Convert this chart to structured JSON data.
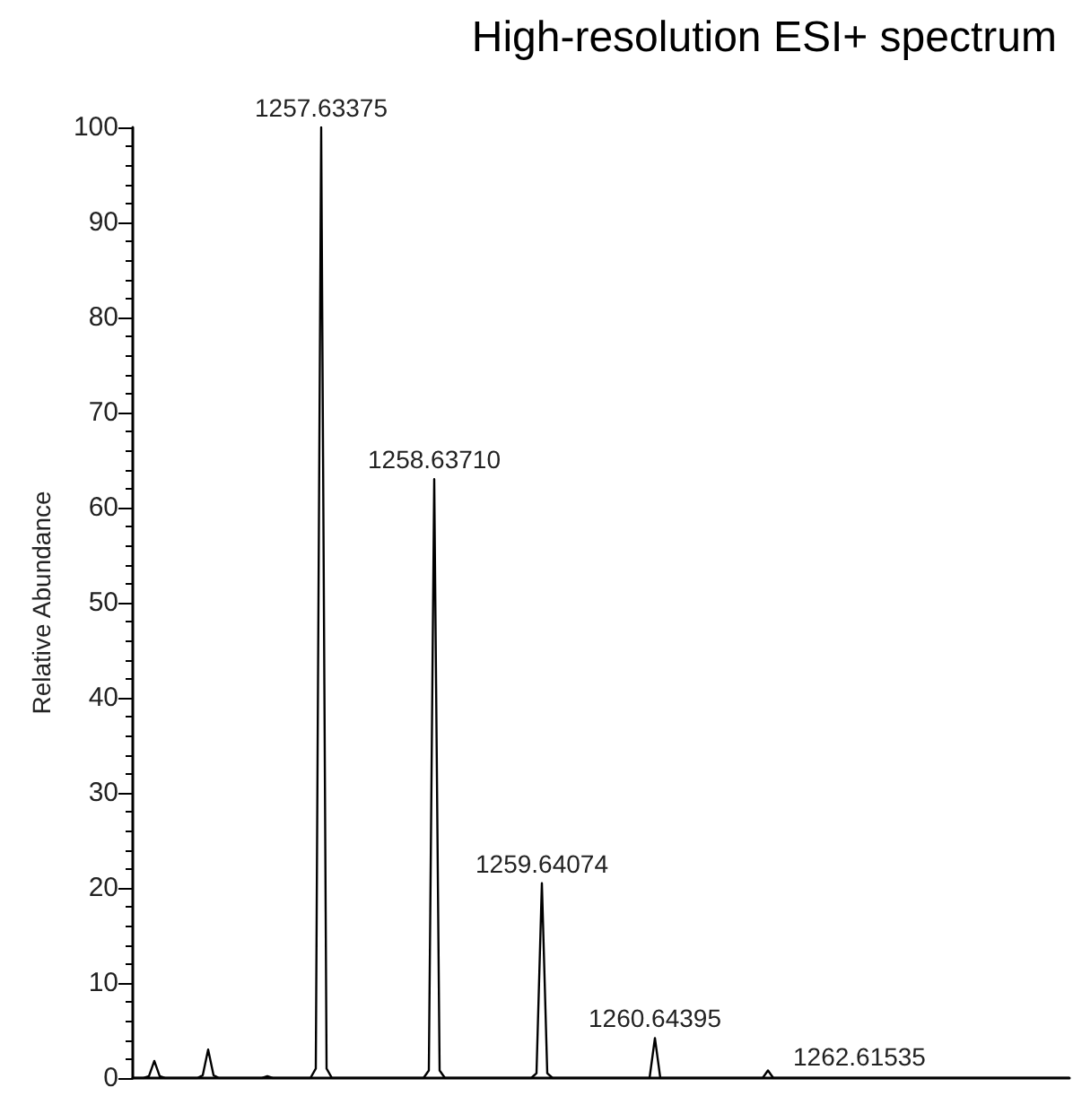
{
  "chart_data": {
    "type": "line",
    "title": "High-resolution ESI+ spectrum",
    "ylabel": "Relative Abundance",
    "color": "#000000",
    "line_style": "solid",
    "grid": false,
    "tick_labels": "y",
    "ylim": [
      0,
      100
    ],
    "yticks": [
      0,
      10,
      20,
      30,
      40,
      50,
      60,
      70,
      80,
      90,
      100
    ],
    "categories": [
      null,
      null,
      null,
      null,
      null,
      null,
      null,
      null,
      null,
      null,
      null,
      null,
      null,
      null,
      null,
      null,
      null,
      null,
      null,
      null,
      null,
      null,
      null,
      null,
      null,
      null,
      null,
      null,
      null,
      null,
      null,
      null,
      null,
      null,
      null,
      null,
      null,
      null,
      null,
      null,
      null,
      null,
      null,
      null,
      null,
      null,
      null,
      null,
      null,
      null,
      null,
      null,
      null,
      null,
      null,
      null,
      null,
      null,
      null,
      null,
      null,
      null,
      null,
      null,
      null,
      null,
      null,
      null,
      null,
      null,
      null,
      null,
      null,
      null,
      null,
      null,
      null,
      null,
      null,
      null,
      null,
      null,
      null,
      null,
      null,
      null,
      null,
      null,
      null,
      null,
      null,
      null,
      null,
      null,
      null,
      null,
      null,
      null,
      null,
      null,
      null,
      null,
      null,
      null,
      null,
      null,
      null,
      null,
      null,
      null,
      null,
      null,
      null,
      null,
      null,
      null,
      null,
      null,
      null,
      null,
      null,
      null,
      null,
      null,
      null,
      null,
      null,
      null,
      null,
      null,
      null,
      null,
      null,
      null,
      null,
      null,
      null,
      null,
      null,
      null,
      null,
      null,
      null,
      null,
      null,
      null,
      null,
      null,
      null,
      null,
      null,
      null,
      null,
      null,
      null,
      null,
      null,
      null,
      null,
      null,
      null,
      null,
      null,
      null,
      null,
      null,
      null,
      null,
      null,
      null,
      null,
      null,
      null,
      null,
      null
    ],
    "values": [
      0,
      0,
      0,
      0.2,
      1.8,
      0.2,
      0,
      0,
      0,
      0,
      0,
      0,
      0,
      0.3,
      3,
      0.3,
      0,
      0,
      0,
      0,
      0,
      0,
      0,
      0,
      0,
      0.2,
      0,
      0,
      0,
      0,
      0,
      0,
      0,
      0,
      1,
      100,
      1,
      0,
      0,
      0,
      0,
      0,
      0,
      0,
      0,
      0,
      0,
      0,
      0,
      0,
      0,
      0,
      0,
      0,
      0,
      0.8,
      63,
      0.8,
      0,
      0,
      0,
      0,
      0,
      0,
      0,
      0,
      0,
      0,
      0,
      0,
      0,
      0,
      0,
      0,
      0,
      0.5,
      20.5,
      0.5,
      0,
      0,
      0,
      0,
      0,
      0,
      0,
      0,
      0,
      0,
      0,
      0,
      0,
      0,
      0,
      0,
      0,
      0,
      0,
      4.2,
      0,
      0,
      0,
      0,
      0,
      0,
      0,
      0,
      0,
      0,
      0,
      0,
      0,
      0,
      0,
      0,
      0,
      0,
      0,
      0,
      0.8,
      0,
      0,
      0,
      0,
      0,
      0,
      0,
      0,
      0,
      0,
      0,
      0,
      0,
      0,
      0,
      0,
      0,
      0,
      0,
      0,
      0,
      0,
      0,
      0,
      0,
      0,
      0,
      0,
      0,
      0,
      0,
      0,
      0,
      0,
      0,
      0,
      0,
      0,
      0,
      0,
      0,
      0,
      0,
      0,
      0,
      0,
      0,
      0,
      0,
      0,
      0,
      0,
      0,
      0,
      0,
      0
    ],
    "annotations": [
      {
        "text": "1257.63375",
        "y": 100
      },
      {
        "text": "1258.63710",
        "y": 63
      },
      {
        "text": "1259.64074",
        "y": 20.5
      },
      {
        "text": "1260.64395",
        "y": 4.2
      },
      {
        "text": "1262.61535",
        "y": 0.8
      }
    ]
  }
}
